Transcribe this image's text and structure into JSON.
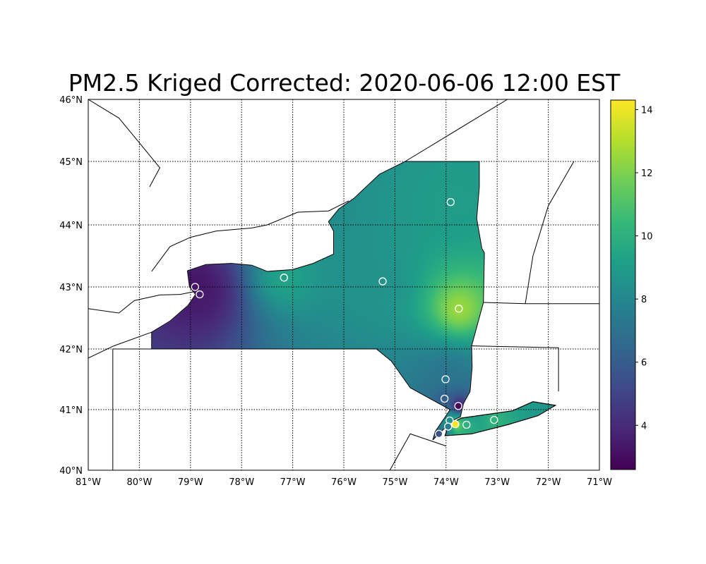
{
  "title": "PM2.5 Kriged Corrected: 2020-06-06 12:00 EST",
  "map": {
    "extent": {
      "lon": [
        -81,
        -71
      ],
      "lat": [
        40,
        46
      ]
    },
    "grid": "dotted",
    "lon_ticks": [
      -81,
      -80,
      -79,
      -78,
      -77,
      -76,
      -75,
      -74,
      -73,
      -72,
      -71
    ],
    "lon_labels": [
      "81°W",
      "80°W",
      "79°W",
      "78°W",
      "77°W",
      "76°W",
      "75°W",
      "74°W",
      "73°W",
      "72°W",
      "71°W"
    ],
    "lat_ticks": [
      40,
      41,
      42,
      43,
      44,
      45,
      46
    ],
    "lat_labels": [
      "40°N",
      "41°N",
      "42°N",
      "43°N",
      "44°N",
      "45°N",
      "46°N"
    ]
  },
  "colorbar": {
    "colormap": "viridis",
    "range": [
      2.6,
      14.3
    ],
    "ticks": [
      4,
      6,
      8,
      10,
      12,
      14
    ],
    "labels": [
      "4",
      "6",
      "8",
      "10",
      "12",
      "14"
    ]
  },
  "stations": [
    {
      "lon": -73.91,
      "lat": 44.36,
      "value": 9.0
    },
    {
      "lon": -77.17,
      "lat": 43.15,
      "value": 9.3
    },
    {
      "lon": -75.24,
      "lat": 43.09,
      "value": 8.6
    },
    {
      "lon": -78.91,
      "lat": 43.0,
      "value": 3.2
    },
    {
      "lon": -78.82,
      "lat": 42.88,
      "value": 3.5
    },
    {
      "lon": -73.75,
      "lat": 42.65,
      "value": 12.5
    },
    {
      "lon": -74.01,
      "lat": 41.5,
      "value": 7.2
    },
    {
      "lon": -74.03,
      "lat": 41.18,
      "value": 6.0
    },
    {
      "lon": -73.76,
      "lat": 41.06,
      "value": 2.8
    },
    {
      "lon": -73.82,
      "lat": 40.76,
      "value": 14.2
    },
    {
      "lon": -73.6,
      "lat": 40.75,
      "value": 10.0
    },
    {
      "lon": -73.06,
      "lat": 40.83,
      "value": 10.2
    },
    {
      "lon": -73.93,
      "lat": 40.82,
      "value": 8.5
    },
    {
      "lon": -73.96,
      "lat": 40.72,
      "value": 7.5
    },
    {
      "lon": -74.14,
      "lat": 40.6,
      "value": 5.5
    }
  ]
}
